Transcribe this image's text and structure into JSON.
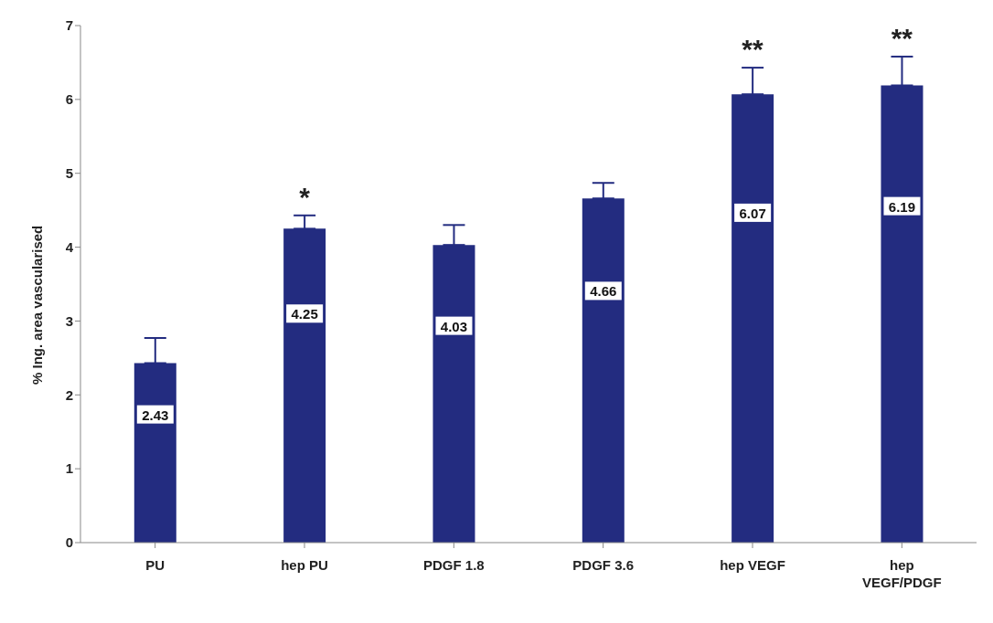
{
  "chart_data": {
    "type": "bar",
    "ylabel": "% Ing. area vascularised",
    "categories": [
      "PU",
      "hep PU",
      "PDGF 1.8",
      "PDGF 3.6",
      "hep VEGF",
      "hep VEGF/PDGF"
    ],
    "values": [
      2.43,
      4.25,
      4.03,
      4.66,
      6.07,
      6.19
    ],
    "errors": [
      [
        2.43,
        2.77
      ],
      [
        4.25,
        4.43
      ],
      [
        4.03,
        4.3
      ],
      [
        4.66,
        4.87
      ],
      [
        6.07,
        6.43
      ],
      [
        6.19,
        6.58
      ]
    ],
    "color": "#232c80",
    "ylim": [
      0,
      7
    ],
    "yticks": [
      0,
      1,
      2,
      3,
      4,
      5,
      6,
      7
    ],
    "grid": false,
    "data_labels": true,
    "annotations": [
      "*",
      "**",
      "**"
    ]
  }
}
